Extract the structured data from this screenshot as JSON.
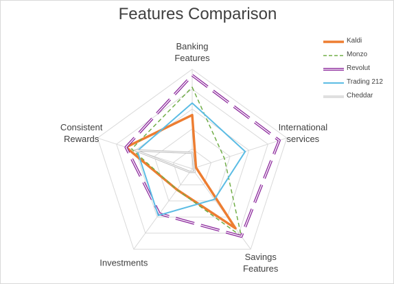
{
  "chart_data": {
    "type": "radar",
    "title": "Features Comparison",
    "categories": [
      "Banking\nFeatures",
      "International\nservices",
      "Savings\nFeatures",
      "Investments",
      "Consistent\nRewards"
    ],
    "ylim": [
      0,
      5
    ],
    "yticks": [
      0,
      1,
      2,
      3,
      4,
      5
    ],
    "grid": true,
    "legend": "top-right",
    "series": [
      {
        "name": "Kaldi",
        "color": "#ED7D31",
        "width": 3.5,
        "dash": false,
        "values": [
          2.7,
          0.2,
          3.7,
          1.3,
          3.5
        ]
      },
      {
        "name": "Monzo",
        "color": "#70AD47",
        "width": 1.5,
        "dash": true,
        "values": [
          4.1,
          1.7,
          4.2,
          1.3,
          3.2
        ]
      },
      {
        "name": "Revolut",
        "color": "#8E2C9E",
        "width": 4,
        "dash": true,
        "double": true,
        "values": [
          4.7,
          4.6,
          4.2,
          2.8,
          3.5
        ]
      },
      {
        "name": "Trading 212",
        "color": "#5BBCE4",
        "width": 2,
        "dash": false,
        "values": [
          3.3,
          2.8,
          1.9,
          2.9,
          2.9
        ]
      },
      {
        "name": "Cheddar",
        "color": "#BFBFBF",
        "width": 3,
        "dash": false,
        "double": true,
        "values": [
          0.8,
          0.1,
          0.2,
          0.2,
          3.0
        ]
      }
    ]
  }
}
